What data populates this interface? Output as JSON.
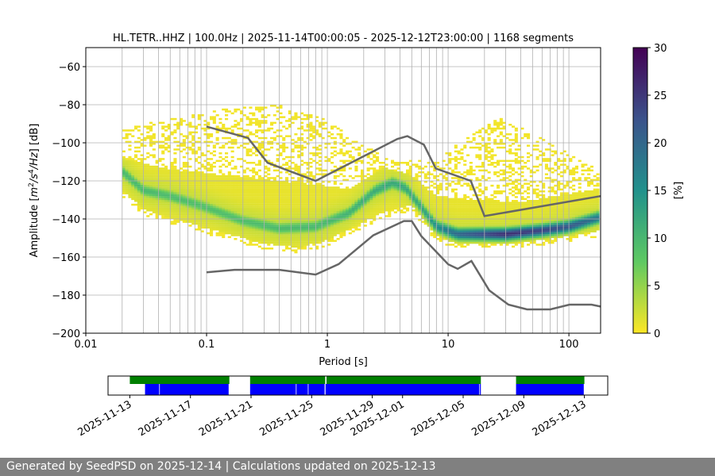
{
  "chart_data": {
    "type": "heatmap",
    "title": "HL.TETR..HHZ | 100.0Hz | 2025-11-14T00:00:05 - 2025-12-12T23:00:00 | 1168 segments",
    "xlabel": "Period [s]",
    "ylabel": "Amplitude [m²/s⁴/Hz] [dB]",
    "ylabel_parts": {
      "pre": "Amplitude [",
      "m": "m",
      "sup2": "2",
      "s": "/s",
      "sup4": "4",
      "hz": "/Hz",
      "post": "] [dB]"
    },
    "x_scale": "log",
    "xlim": [
      0.01,
      183
    ],
    "ylim": [
      -200,
      -50
    ],
    "x_ticks": [
      {
        "v": 0.01,
        "label": "0.01"
      },
      {
        "v": 0.1,
        "label": "0.1"
      },
      {
        "v": 1,
        "label": "1"
      },
      {
        "v": 10,
        "label": "10"
      },
      {
        "v": 100,
        "label": "100"
      }
    ],
    "y_ticks": [
      {
        "v": -60,
        "label": "−60"
      },
      {
        "v": -80,
        "label": "−80"
      },
      {
        "v": -100,
        "label": "−100"
      },
      {
        "v": -120,
        "label": "−120"
      },
      {
        "v": -140,
        "label": "−140"
      },
      {
        "v": -160,
        "label": "−160"
      },
      {
        "v": -180,
        "label": "−180"
      },
      {
        "v": -200,
        "label": "−200"
      }
    ],
    "grid": true,
    "colormap": "viridis_r",
    "colorbar": {
      "label": "[%]",
      "range": [
        0,
        30
      ],
      "ticks": [
        {
          "v": 0,
          "label": "0"
        },
        {
          "v": 5,
          "label": "5"
        },
        {
          "v": 10,
          "label": "10"
        },
        {
          "v": 15,
          "label": "15"
        },
        {
          "v": 20,
          "label": "20"
        },
        {
          "v": 25,
          "label": "25"
        },
        {
          "v": 30,
          "label": "30"
        }
      ]
    },
    "period_range": [
      0.02,
      183
    ],
    "mode_curve": [
      [
        0.02,
        -115
      ],
      [
        0.03,
        -125
      ],
      [
        0.05,
        -128
      ],
      [
        0.1,
        -134
      ],
      [
        0.2,
        -141
      ],
      [
        0.4,
        -145
      ],
      [
        0.8,
        -144
      ],
      [
        1.5,
        -137
      ],
      [
        2.5,
        -125
      ],
      [
        3.5,
        -121
      ],
      [
        4.5,
        -124
      ],
      [
        6,
        -134
      ],
      [
        8,
        -144
      ],
      [
        12,
        -148
      ],
      [
        30,
        -148
      ],
      [
        60,
        -146
      ],
      [
        100,
        -144
      ],
      [
        183,
        -139
      ]
    ],
    "mode_peak_percent": [
      [
        0.02,
        10
      ],
      [
        0.1,
        9
      ],
      [
        1,
        10
      ],
      [
        3,
        12
      ],
      [
        6,
        12
      ],
      [
        12,
        20
      ],
      [
        30,
        26
      ],
      [
        100,
        22
      ],
      [
        183,
        18
      ]
    ],
    "dense_upper": [
      [
        0.02,
        -108
      ],
      [
        0.05,
        -114
      ],
      [
        0.2,
        -118
      ],
      [
        0.8,
        -122
      ],
      [
        1.5,
        -124
      ],
      [
        3,
        -113
      ],
      [
        5,
        -117
      ],
      [
        8,
        -128
      ],
      [
        15,
        -130
      ],
      [
        40,
        -131
      ],
      [
        183,
        -124
      ]
    ],
    "dense_lower": [
      [
        0.02,
        -125
      ],
      [
        0.03,
        -135
      ],
      [
        0.1,
        -145
      ],
      [
        0.3,
        -153
      ],
      [
        0.6,
        -155
      ],
      [
        1,
        -151
      ],
      [
        3,
        -136
      ],
      [
        5,
        -133
      ],
      [
        7,
        -145
      ],
      [
        10,
        -152
      ],
      [
        40,
        -152
      ],
      [
        100,
        -149
      ],
      [
        183,
        -146
      ]
    ],
    "sparse_upper": [
      [
        0.02,
        -92
      ],
      [
        0.15,
        -82
      ],
      [
        0.4,
        -80
      ],
      [
        1,
        -88
      ],
      [
        3,
        -108
      ],
      [
        8,
        -110
      ],
      [
        15,
        -95
      ],
      [
        25,
        -86
      ],
      [
        50,
        -95
      ],
      [
        183,
        -115
      ]
    ],
    "noise_models": [
      {
        "color": "#666666",
        "points": [
          [
            0.1,
            -91.5
          ],
          [
            0.22,
            -97.4
          ],
          [
            0.32,
            -110.5
          ],
          [
            0.8,
            -120
          ],
          [
            3.8,
            -98
          ],
          [
            4.6,
            -96.5
          ],
          [
            6.3,
            -101
          ],
          [
            7.9,
            -113.5
          ],
          [
            15.4,
            -120
          ],
          [
            20,
            -138.5
          ],
          [
            183,
            -128
          ]
        ]
      },
      {
        "color": "#666666",
        "points": [
          [
            0.1,
            -168
          ],
          [
            0.17,
            -166.7
          ],
          [
            0.4,
            -166.7
          ],
          [
            0.8,
            -169.2
          ],
          [
            1.24,
            -163.7
          ],
          [
            2.4,
            -148.6
          ],
          [
            4.3,
            -141.1
          ],
          [
            5,
            -141.1
          ],
          [
            6,
            -149
          ],
          [
            10,
            -163.8
          ],
          [
            12,
            -166.2
          ],
          [
            15.6,
            -162.1
          ],
          [
            21.9,
            -177.5
          ],
          [
            31.6,
            -185
          ],
          [
            45,
            -187.5
          ],
          [
            70,
            -187.5
          ],
          [
            101,
            -185
          ],
          [
            154,
            -185
          ],
          [
            183,
            -186
          ]
        ]
      }
    ],
    "timeline": {
      "xlim": [
        "2025-11-11T13:30",
        "2025-12-14T13:00"
      ],
      "ticks": [
        "2025-11-13",
        "2025-11-17",
        "2025-11-21",
        "2025-11-25",
        "2025-11-29",
        "2025-12-01",
        "2025-12-05",
        "2025-12-09",
        "2025-12-13"
      ],
      "data_color": "#008000",
      "used_color": "#0000ff",
      "data_spans": [
        [
          "2025-11-13T00:00",
          "2025-11-19T13:40"
        ],
        [
          "2025-11-20T22:30",
          "2025-11-25T21:30"
        ],
        [
          "2025-11-25T23:30",
          "2025-12-06T04:00"
        ],
        [
          "2025-12-08T11:45",
          "2025-12-13T00:00"
        ]
      ],
      "used_spans": [
        [
          "2025-11-14T00:05",
          "2025-11-14T22:30"
        ],
        [
          "2025-11-14T23:30",
          "2025-11-19T12:30"
        ],
        [
          "2025-11-20T22:30",
          "2025-11-23T23:00"
        ],
        [
          "2025-11-24T00:00",
          "2025-11-24T18:00"
        ],
        [
          "2025-11-24T19:00",
          "2025-11-25T20:30"
        ],
        [
          "2025-11-25T22:00",
          "2025-12-06T01:30"
        ],
        [
          "2025-12-06T02:30",
          "2025-12-06T04:00"
        ],
        [
          "2025-12-08T11:45",
          "2025-12-12T23:00"
        ]
      ]
    }
  },
  "footer": {
    "text": "Generated by SeedPSD on 2025-12-14 | Calculations updated on 2025-12-13"
  }
}
